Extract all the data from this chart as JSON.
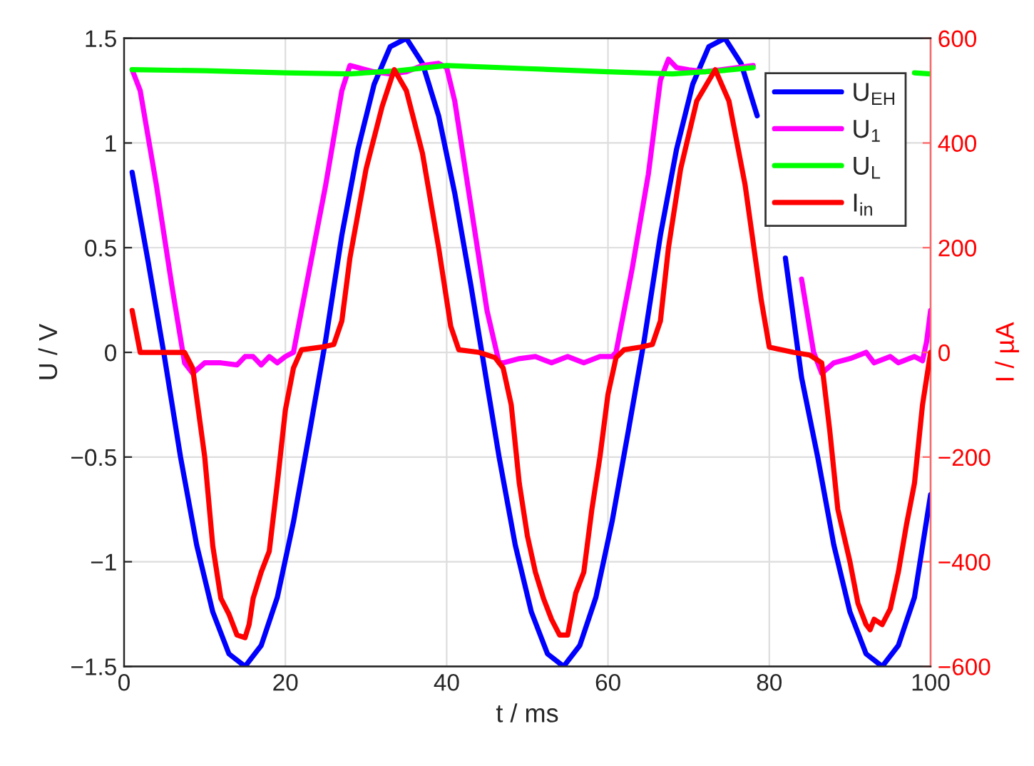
{
  "chart_data": {
    "type": "line",
    "xlabel": "t / ms",
    "ylabel": "U / V",
    "y2label": "I / µA",
    "xlim": [
      0,
      100
    ],
    "xticks": [
      0,
      20,
      40,
      60,
      80,
      100
    ],
    "ylim": [
      -1.5,
      1.5
    ],
    "yticks": [
      {
        "value": -1.5,
        "label": "−1.5"
      },
      {
        "value": -1,
        "label": "−1"
      },
      {
        "value": -0.5,
        "label": "−0.5"
      },
      0,
      0.5,
      1,
      1.5
    ],
    "y2lim": [
      -600,
      600
    ],
    "y2ticks": [
      {
        "value": -600,
        "label": "−600"
      },
      {
        "value": -400,
        "label": "−400"
      },
      {
        "value": -200,
        "label": "−200"
      },
      0,
      200,
      400,
      600
    ],
    "grid": true,
    "legend": "top right",
    "line_style": "solid",
    "marker": "none",
    "series": [
      {
        "name": "U$_{EH}$",
        "color": "#0000ff",
        "x": [
          1,
          3,
          5,
          7,
          9,
          11,
          13,
          15,
          17,
          19,
          21,
          23,
          25,
          27,
          29,
          31,
          33,
          35,
          37,
          39,
          41,
          43,
          45,
          46.5,
          48.5,
          50.5,
          52.5,
          54.5,
          56.5,
          58.5,
          60.5,
          62.5,
          64.5,
          66.5,
          68.5,
          70.5,
          72.5,
          74.5,
          76.5,
          78.5,
          80,
          82,
          84,
          86,
          88,
          90,
          92,
          94,
          96,
          98,
          100
        ],
        "values": [
          0.86,
          0.43,
          -0.02,
          -0.5,
          -0.92,
          -1.24,
          -1.44,
          -1.5,
          -1.4,
          -1.17,
          -0.81,
          -0.38,
          0.06,
          0.56,
          0.97,
          1.28,
          1.46,
          1.5,
          1.38,
          1.13,
          0.76,
          0.32,
          -0.15,
          -0.5,
          -0.92,
          -1.24,
          -1.44,
          -1.5,
          -1.4,
          -1.17,
          -0.81,
          -0.38,
          0.06,
          0.56,
          0.97,
          1.28,
          1.46,
          1.5,
          1.38,
          1.13,
          null,
          0.45,
          -0.12,
          -0.5,
          -0.92,
          -1.24,
          -1.44,
          -1.5,
          -1.4,
          -1.17,
          -0.68
        ]
      },
      {
        "name": "U$_{1}$",
        "color": "#ff00ff",
        "x": [
          1,
          2,
          4,
          6,
          7.5,
          8.5,
          10,
          12,
          14,
          15,
          16,
          17,
          18,
          19,
          20,
          21,
          22.5,
          25,
          27,
          28,
          29,
          31,
          33,
          35,
          37,
          39,
          40,
          41,
          43,
          45,
          46.5,
          47,
          49,
          51,
          53,
          55,
          57,
          59,
          60.5,
          61,
          63,
          65,
          66.5,
          67.5,
          68.5,
          70,
          72,
          74,
          76,
          78,
          80,
          84,
          85.5,
          86.5,
          88,
          90,
          92,
          93,
          95,
          96,
          98,
          99,
          99.5,
          100
        ],
        "values": [
          1.35,
          1.25,
          0.8,
          0.3,
          -0.05,
          -0.1,
          -0.05,
          -0.05,
          -0.06,
          -0.02,
          -0.02,
          -0.06,
          -0.02,
          -0.05,
          -0.02,
          0.0,
          0.3,
          0.8,
          1.25,
          1.37,
          1.36,
          1.34,
          1.33,
          1.34,
          1.37,
          1.38,
          1.36,
          1.2,
          0.7,
          0.2,
          -0.05,
          -0.05,
          -0.03,
          -0.02,
          -0.05,
          -0.02,
          -0.05,
          -0.02,
          -0.02,
          0.0,
          0.4,
          0.85,
          1.3,
          1.4,
          1.36,
          1.35,
          1.34,
          1.35,
          1.36,
          1.37,
          null,
          0.35,
          0.0,
          -0.1,
          -0.05,
          -0.03,
          0.0,
          -0.05,
          -0.02,
          -0.05,
          -0.02,
          -0.04,
          0.05,
          0.2
        ]
      },
      {
        "name": "U$_{L}$",
        "color": "#00ff00",
        "x": [
          1,
          10,
          20,
          28,
          34,
          40,
          50,
          60,
          68,
          74,
          78,
          88,
          98,
          100
        ],
        "values": [
          1.35,
          1.345,
          1.335,
          1.33,
          1.345,
          1.37,
          1.355,
          1.34,
          1.33,
          1.345,
          1.36,
          null,
          1.335,
          1.33
        ]
      },
      {
        "name": "I$_{in}$",
        "color": "#ff0000",
        "axis": "y2",
        "x": [
          1,
          2,
          4,
          7.5,
          8.5,
          10,
          11,
          12,
          13,
          14,
          15,
          15.5,
          16,
          17,
          18,
          19,
          20,
          21,
          22,
          24.5,
          26,
          27,
          28,
          30,
          32,
          33.5,
          35,
          37,
          39,
          40.5,
          41.5,
          44,
          46,
          47,
          48,
          49,
          50,
          51,
          52,
          53,
          54,
          55,
          55.5,
          56,
          57,
          58,
          59,
          60,
          61,
          62,
          64,
          65.5,
          66.5,
          67.5,
          69,
          71,
          73.3,
          75,
          77,
          79,
          80,
          83,
          85,
          86.5,
          87.5,
          88.5,
          90,
          91,
          92,
          92.5,
          93,
          94,
          95,
          96,
          97,
          98,
          99,
          100
        ],
        "values": [
          80,
          0,
          0,
          0,
          -30,
          -200,
          -370,
          -470,
          -500,
          -540,
          -545,
          -520,
          -470,
          -420,
          -380,
          -250,
          -110,
          -30,
          5,
          10,
          15,
          60,
          180,
          350,
          470,
          540,
          500,
          380,
          200,
          50,
          5,
          0,
          -10,
          -30,
          -100,
          -250,
          -350,
          -420,
          -470,
          -510,
          -540,
          -540,
          -500,
          -460,
          -420,
          -300,
          -200,
          -80,
          -10,
          5,
          10,
          15,
          60,
          200,
          350,
          480,
          540,
          480,
          320,
          100,
          10,
          0,
          -5,
          -20,
          -150,
          -300,
          -400,
          -480,
          -520,
          -530,
          -510,
          -520,
          -490,
          -420,
          -330,
          -250,
          -100,
          0
        ]
      }
    ]
  }
}
